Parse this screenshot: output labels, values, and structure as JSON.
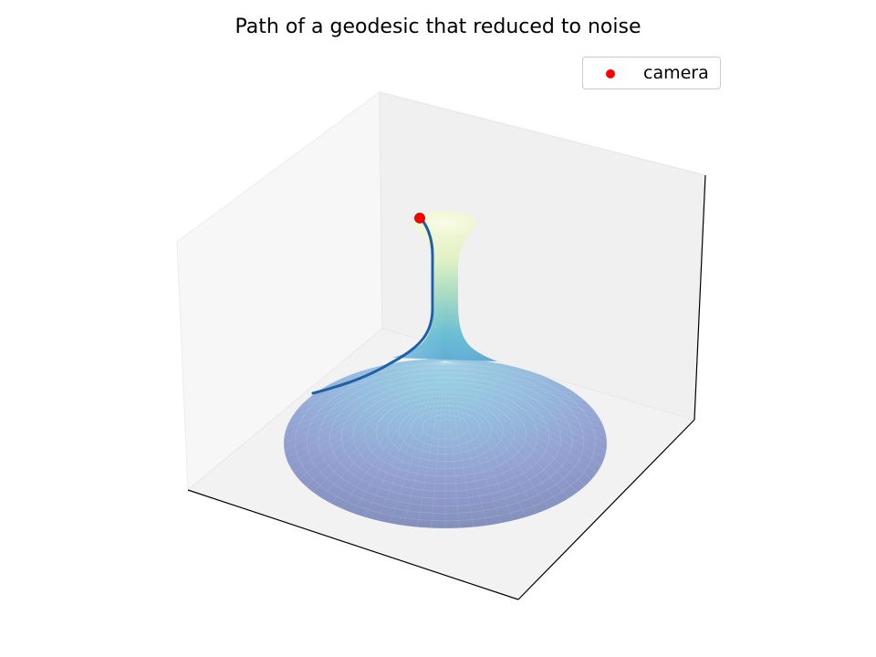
{
  "chart_data": {
    "type": "surface-3d",
    "title": "Path of a geodesic that reduced to noise",
    "xlabel": "",
    "ylabel": "",
    "zlabel": "",
    "grid": false,
    "axis_ticks": false,
    "legend": {
      "placement": "top-right",
      "entries": [
        {
          "label": "camera",
          "marker": "circle",
          "color": "#ff0000"
        }
      ]
    },
    "surface": {
      "shape": "flared funnel (pseudosphere-like horn)",
      "colormap": [
        "#414487",
        "#2c7fb8",
        "#41b6c4",
        "#a1dab4",
        "#ffffcc"
      ],
      "alpha": 0.6
    },
    "series": [
      {
        "label": "geodesic",
        "kind": "line",
        "color": "#1f5fa8"
      },
      {
        "label": "camera",
        "kind": "point",
        "color": "#ff0000"
      }
    ]
  }
}
